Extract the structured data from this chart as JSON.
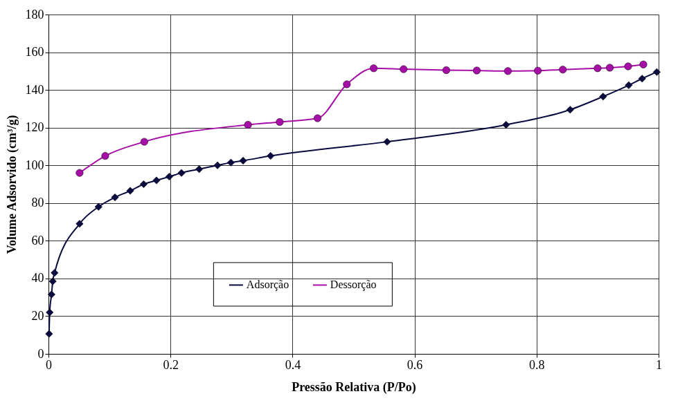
{
  "chart_data": {
    "type": "line",
    "xlabel": "Pressão Relativa (P/Po)",
    "ylabel": "Volume Adsorvido (cm³/g)",
    "xlim": [
      0,
      1
    ],
    "xticks": [
      0,
      0.2,
      0.4,
      0.6,
      0.8,
      1
    ],
    "ylim": [
      0,
      180
    ],
    "yticks": [
      0,
      20,
      40,
      60,
      80,
      100,
      120,
      140,
      160,
      180
    ],
    "grid": true,
    "legend": "bottom",
    "line_style": "solid",
    "series": [
      {
        "name": "Adsorção",
        "color": "#0a0a40",
        "marker": "diamond",
        "x": [
          0.001,
          0.002,
          0.005,
          0.007,
          0.01,
          0.051,
          0.082,
          0.109,
          0.134,
          0.156,
          0.177,
          0.198,
          0.218,
          0.247,
          0.277,
          0.299,
          0.319,
          0.364,
          0.555,
          0.75,
          0.855,
          0.909,
          0.951,
          0.973,
          0.997
        ],
        "values": [
          10.6,
          22,
          31.5,
          38.5,
          43,
          69,
          78,
          83,
          86.5,
          90,
          92,
          94,
          96,
          98,
          100,
          101.5,
          102.5,
          105,
          112.5,
          121.5,
          129.5,
          136.5,
          142.5,
          146,
          149.5
        ]
      },
      {
        "name": "Dessorção",
        "color": "#a50fa5",
        "marker": "circle",
        "x": [
          0.051,
          0.093,
          0.157,
          0.327,
          0.379,
          0.441,
          0.489,
          0.533,
          0.582,
          0.652,
          0.702,
          0.753,
          0.802,
          0.843,
          0.9,
          0.92,
          0.95,
          0.975
        ],
        "values": [
          96,
          105,
          112.5,
          121.5,
          123,
          125,
          143,
          151.5,
          151,
          150.5,
          150.3,
          150,
          150.2,
          150.8,
          151.5,
          151.8,
          152.5,
          153.5
        ]
      }
    ]
  }
}
